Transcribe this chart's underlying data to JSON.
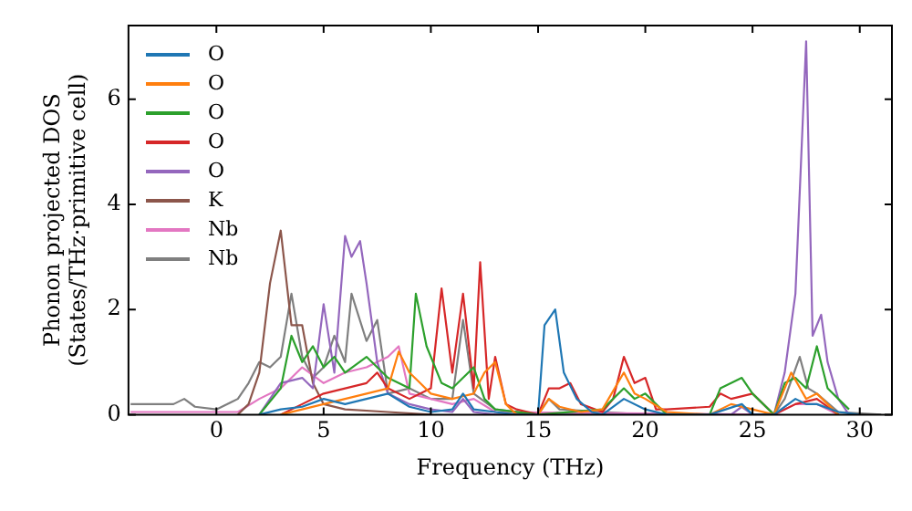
{
  "chart_data": {
    "type": "line",
    "xlabel": "Frequency (THz)",
    "ylabel": "Phonon projected DOS\n(States/THz·primitive cell)",
    "xlim": [
      -4.1,
      31.5
    ],
    "xticks": [
      0,
      5,
      10,
      15,
      20,
      25,
      30
    ],
    "ylim": [
      0,
      7.4
    ],
    "yticks": [
      0,
      2,
      4,
      6
    ],
    "legend": "top left",
    "series": [
      {
        "name": "O",
        "color": "#1f77b4",
        "x": [
          2,
          3,
          4,
          5,
          6,
          7,
          8,
          9,
          10,
          11,
          11.5,
          12,
          13,
          14,
          15,
          15.3,
          15.8,
          16.2,
          16.8,
          17.5,
          18,
          19,
          20,
          21,
          23,
          24.5,
          25,
          26,
          27,
          27.5,
          28,
          29,
          30
        ],
        "values": [
          0,
          0.1,
          0.15,
          0.3,
          0.2,
          0.3,
          0.4,
          0.15,
          0.05,
          0.1,
          0.4,
          0.1,
          0.05,
          0,
          0,
          1.7,
          2.0,
          0.8,
          0.3,
          0.05,
          0,
          0.3,
          0.1,
          0,
          0,
          0.2,
          0,
          0,
          0.3,
          0.2,
          0.2,
          0.05,
          0
        ]
      },
      {
        "name": "O",
        "color": "#ff7f0e",
        "x": [
          3,
          4,
          5,
          6,
          7,
          8,
          8.5,
          9,
          9.5,
          10,
          11,
          12,
          12.5,
          13,
          13.5,
          14,
          15,
          15.5,
          16,
          17,
          18,
          19,
          19.5,
          20,
          21,
          23,
          24,
          25,
          26,
          26.8,
          27.5,
          28,
          29
        ],
        "values": [
          0,
          0.1,
          0.2,
          0.3,
          0.4,
          0.5,
          1.2,
          0.8,
          0.6,
          0.4,
          0.3,
          0.4,
          0.8,
          1.0,
          0.2,
          0,
          0,
          0.3,
          0.15,
          0.05,
          0.1,
          0.8,
          0.4,
          0.3,
          0.05,
          0,
          0.2,
          0.1,
          0,
          0.8,
          0.3,
          0.4,
          0
        ]
      },
      {
        "name": "O",
        "color": "#2ca02c",
        "x": [
          2,
          3,
          3.5,
          4,
          4.5,
          5,
          5.5,
          6,
          7,
          8,
          9,
          9.3,
          9.8,
          10.5,
          11,
          12,
          12.5,
          13,
          15,
          18,
          19,
          19.5,
          20,
          21,
          23,
          23.5,
          24.5,
          25,
          26,
          26.5,
          27,
          27.5,
          28,
          28.5,
          29,
          29.5
        ],
        "values": [
          0,
          0.5,
          1.5,
          1.0,
          1.3,
          0.9,
          1.1,
          0.8,
          1.1,
          0.7,
          0.5,
          2.3,
          1.3,
          0.6,
          0.5,
          0.9,
          0.3,
          0.1,
          0,
          0.1,
          0.5,
          0.3,
          0.4,
          0,
          0,
          0.5,
          0.7,
          0.4,
          0,
          0.6,
          0.7,
          0.5,
          1.3,
          0.5,
          0.3,
          0.1
        ]
      },
      {
        "name": "O",
        "color": "#d62728",
        "x": [
          3,
          4,
          5,
          6,
          7,
          7.5,
          8,
          9,
          10,
          10.5,
          11,
          11.5,
          12,
          12.3,
          12.7,
          13,
          13.5,
          14,
          15,
          15.5,
          16,
          16.5,
          17,
          18,
          18.5,
          19,
          19.5,
          20,
          20.5,
          21,
          23,
          23.5,
          24,
          25,
          26,
          27,
          28,
          29
        ],
        "values": [
          0,
          0.2,
          0.4,
          0.5,
          0.6,
          0.8,
          0.5,
          0.3,
          0.5,
          2.4,
          0.8,
          2.3,
          0.5,
          2.9,
          0.3,
          1.1,
          0.2,
          0.1,
          0,
          0.5,
          0.5,
          0.6,
          0.2,
          0.05,
          0.3,
          1.1,
          0.6,
          0.7,
          0.1,
          0.1,
          0.15,
          0.4,
          0.3,
          0.4,
          0,
          0.2,
          0.3,
          0
        ]
      },
      {
        "name": "O",
        "color": "#9467bd",
        "x": [
          2,
          3,
          4,
          4.5,
          5,
          5.5,
          6,
          6.3,
          6.7,
          7,
          7.5,
          8,
          9,
          10,
          11,
          11.5,
          12,
          13,
          24,
          24.5,
          25,
          26,
          26.5,
          27,
          27.5,
          27.8,
          28.2,
          28.5,
          29,
          29.5
        ],
        "values": [
          0,
          0.6,
          0.7,
          0.5,
          2.1,
          0.8,
          3.4,
          3.0,
          3.3,
          2.5,
          1.0,
          0.4,
          0.2,
          0.1,
          0.05,
          0.3,
          0.05,
          0,
          0,
          0.15,
          0,
          0,
          0.8,
          2.3,
          7.1,
          1.5,
          1.9,
          1.0,
          0.3,
          0
        ]
      },
      {
        "name": "K",
        "color": "#8c564b",
        "x": [
          1,
          1.5,
          2,
          2.5,
          3,
          3.5,
          4,
          4.5,
          5,
          6,
          8,
          10
        ],
        "values": [
          0,
          0.2,
          0.8,
          2.5,
          3.5,
          1.7,
          1.7,
          0.6,
          0.2,
          0.1,
          0.05,
          0
        ]
      },
      {
        "name": "Nb",
        "color": "#e377c2",
        "x": [
          -4,
          1,
          2,
          3,
          4,
          5,
          6,
          7,
          8,
          8.5,
          9,
          10,
          11,
          12,
          13,
          26,
          27,
          28,
          29
        ],
        "values": [
          0.05,
          0.05,
          0.3,
          0.5,
          0.9,
          0.6,
          0.8,
          0.9,
          1.1,
          1.3,
          0.4,
          0.3,
          0.2,
          0.3,
          0.05,
          0,
          0.2,
          0.2,
          0
        ]
      },
      {
        "name": "Nb",
        "color": "#7f7f7f",
        "x": [
          -4,
          -3,
          -2,
          -1.5,
          -1,
          0,
          1,
          1.5,
          2,
          2.5,
          3,
          3.5,
          4,
          4.5,
          5,
          5.5,
          6,
          6.3,
          7,
          7.5,
          8,
          9,
          10,
          11,
          11.5,
          12,
          13,
          15,
          15.5,
          16,
          20,
          26,
          26.5,
          27.2,
          27.6,
          28,
          29,
          31
        ],
        "values": [
          0.2,
          0.2,
          0.2,
          0.3,
          0.15,
          0.1,
          0.3,
          0.6,
          1.0,
          0.9,
          1.1,
          2.3,
          1.1,
          0.7,
          0.9,
          1.5,
          1.0,
          2.3,
          1.4,
          1.8,
          0.4,
          0.5,
          0.3,
          0.3,
          1.8,
          0.4,
          0.1,
          0,
          0.3,
          0.1,
          0,
          0,
          0.3,
          1.1,
          0.5,
          0.4,
          0.05,
          0
        ]
      }
    ]
  }
}
